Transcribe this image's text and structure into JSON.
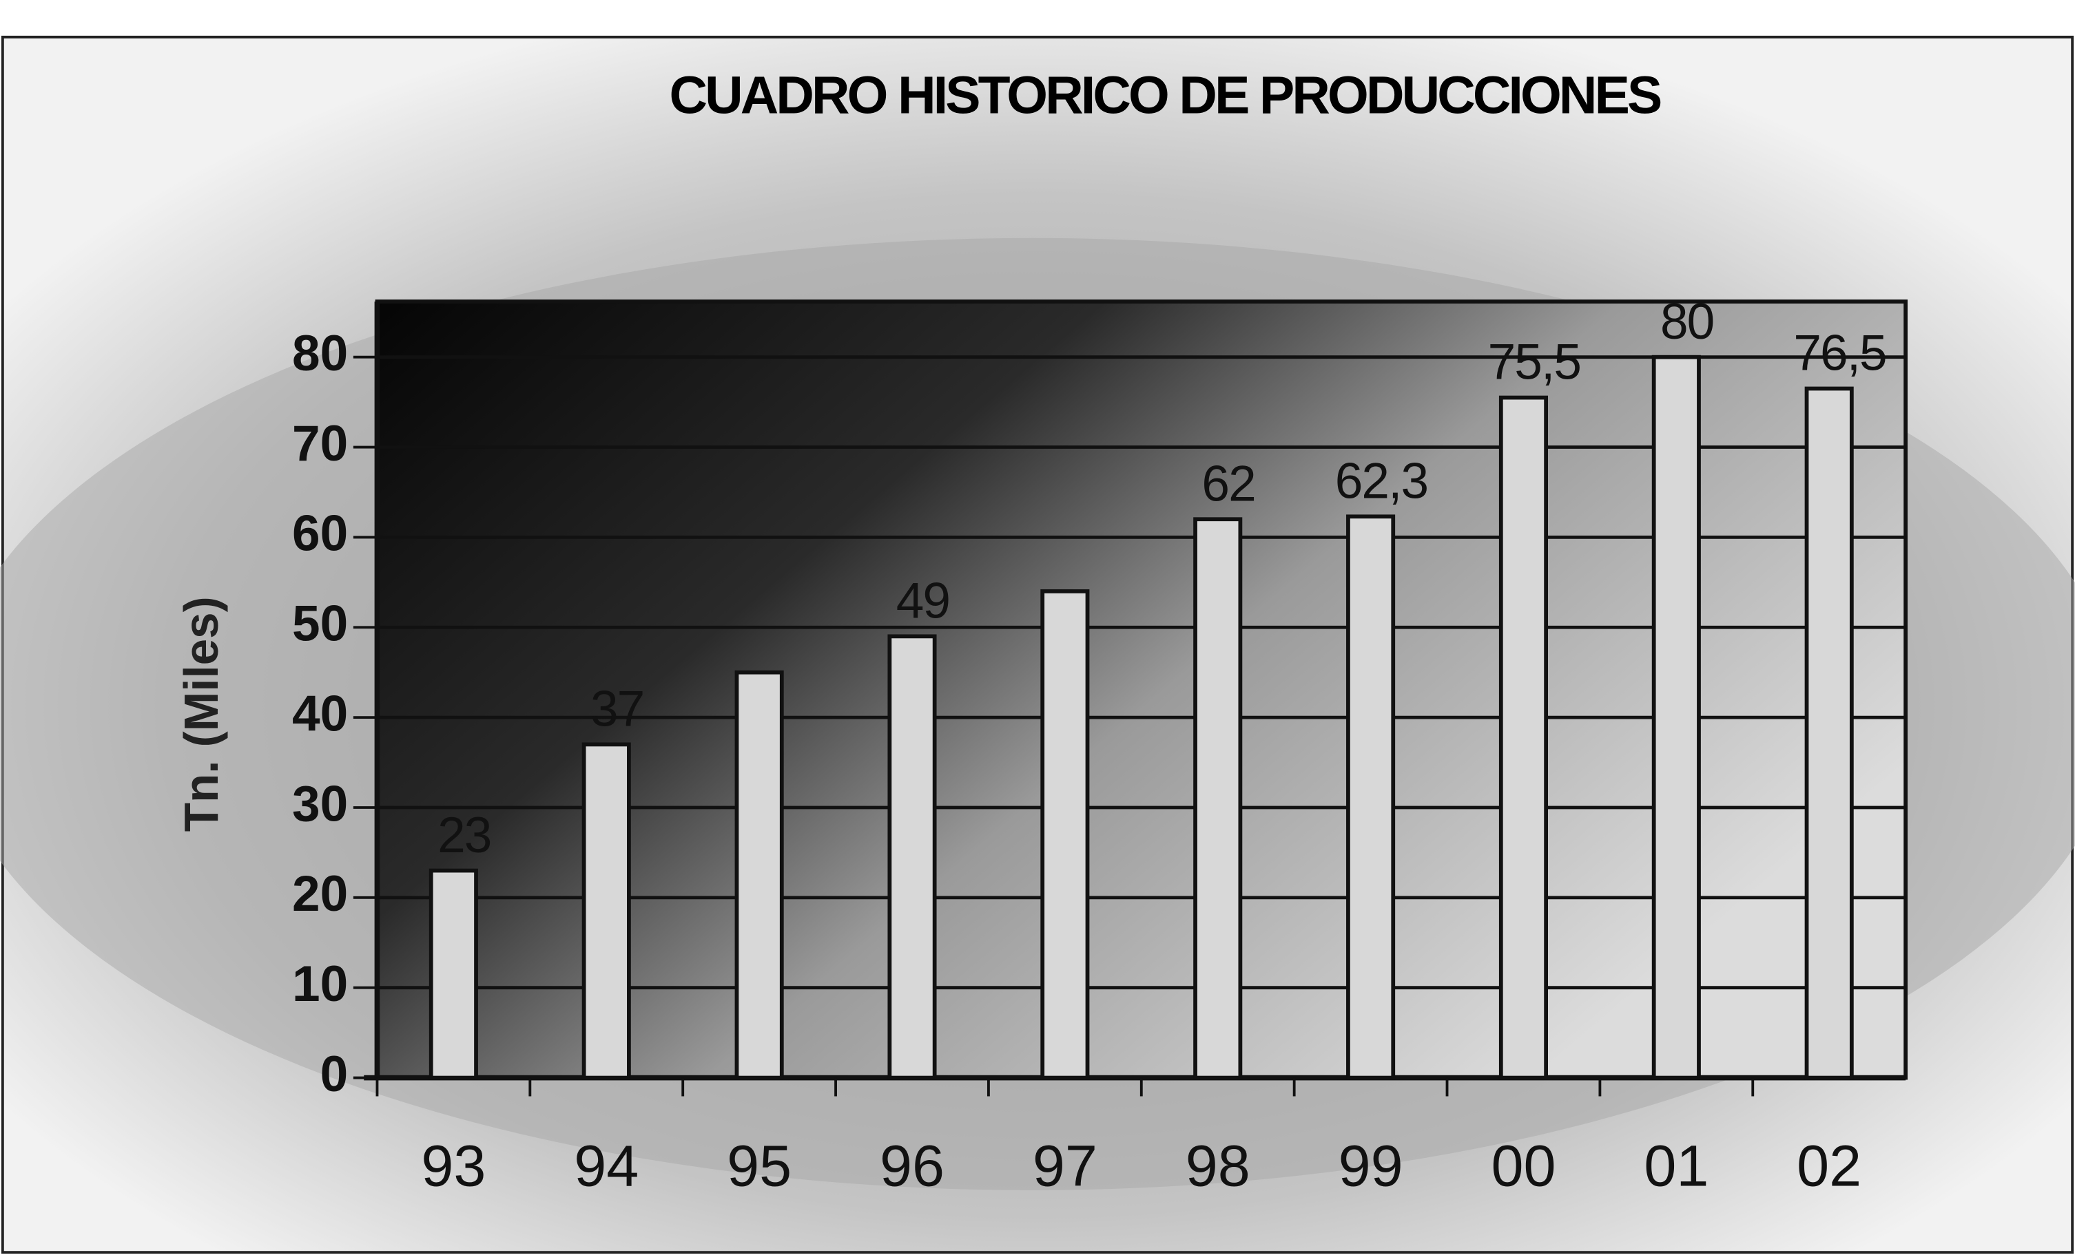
{
  "chart_data": {
    "type": "bar",
    "title": "CUADRO HISTORICO DE PRODUCCIONES",
    "y_label": "Tn. (Miles)",
    "categories": [
      "93",
      "94",
      "95",
      "96",
      "97",
      "98",
      "99",
      "00",
      "01",
      "02"
    ],
    "values": [
      23,
      37,
      45,
      49,
      54,
      62,
      62.3,
      75.5,
      80,
      76.5
    ],
    "value_labels": [
      "23",
      "37",
      null,
      "49",
      null,
      "62",
      "62,3",
      "75,5",
      "80",
      "76,5"
    ],
    "color": "#d8d8d8",
    "ylim": [
      0,
      80
    ],
    "yticks": [
      0,
      10,
      20,
      30,
      40,
      50,
      60,
      70,
      80
    ],
    "grid": true
  }
}
